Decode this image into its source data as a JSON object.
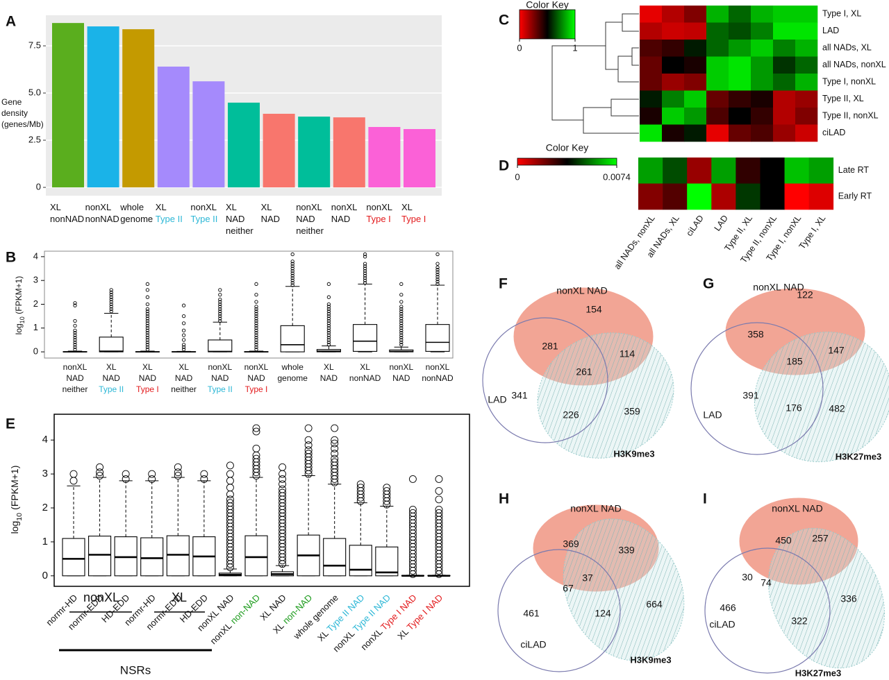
{
  "chart_data": [
    {
      "type": "bar",
      "label": "A",
      "ylabel": [
        "Gene",
        "density",
        "(genes/Mb)"
      ],
      "categories": [
        [
          "XL",
          "nonNAD"
        ],
        [
          "nonXL",
          "nonNAD"
        ],
        [
          "whole",
          "genome"
        ],
        [
          "XL",
          {
            "text": "Type II",
            "color": "#2cb7d6"
          }
        ],
        [
          "nonXL",
          {
            "text": "Type II",
            "color": "#2cb7d6"
          }
        ],
        [
          "XL",
          "NAD",
          "neither"
        ],
        [
          "XL",
          "NAD"
        ],
        [
          "nonXL",
          "NAD",
          "neither"
        ],
        [
          "nonXL",
          "NAD"
        ],
        [
          "nonXL",
          {
            "text": "Type I",
            "color": "#e31a1c"
          }
        ],
        [
          "XL",
          {
            "text": "Type I",
            "color": "#e31a1c"
          }
        ]
      ],
      "values": [
        8.71,
        8.53,
        8.38,
        6.4,
        5.62,
        4.49,
        3.9,
        3.75,
        3.71,
        3.2,
        3.09
      ],
      "colors": [
        "#5aae1e",
        "#1ab3e8",
        "#c49a00",
        "#a58afc",
        "#a58afc",
        "#00be9a",
        "#f8766d",
        "#00be9a",
        "#f8766d",
        "#fb61d7",
        "#fb61d7"
      ],
      "ylim": [
        -0.44,
        9.12
      ],
      "yticks": [
        0,
        2.5,
        {
          "value": 5,
          "label": "5.0"
        },
        7.5
      ],
      "grid": true
    },
    {
      "type": "box",
      "label": "B",
      "ylabel": [
        "log",
        "10",
        "(FPKM+1)"
      ],
      "categories": [
        [
          "nonXL",
          "NAD",
          "neither"
        ],
        [
          "XL",
          "NAD",
          {
            "text": "Type II",
            "color": "#2cb7d6"
          }
        ],
        [
          "XL",
          "NAD",
          {
            "text": "Type I",
            "color": "#e31a1c"
          }
        ],
        [
          "XL",
          "NAD",
          "neither"
        ],
        [
          "nonXL",
          "NAD",
          {
            "text": "Type II",
            "color": "#2cb7d6"
          }
        ],
        [
          "nonXL",
          "NAD",
          {
            "text": "Type I",
            "color": "#e31a1c"
          }
        ],
        [
          "whole",
          "genome"
        ],
        [
          "XL",
          "NAD"
        ],
        [
          "XL",
          "nonNAD"
        ],
        [
          "nonXL",
          "NAD"
        ],
        [
          "nonXL",
          "nonNAD"
        ]
      ],
      "stats": [
        {
          "whisker_low": 0,
          "q1": 0,
          "median": 0,
          "q3": 0.01,
          "whisker_high": 0.03,
          "outliers": [
            0.1,
            0.2,
            0.3,
            0.4,
            0.5,
            0.6,
            0.7,
            0.8,
            0.9,
            1.1,
            1.3,
            1.95,
            2.05
          ]
        },
        {
          "whisker_low": 0,
          "q1": 0,
          "median": 0.03,
          "q3": 0.62,
          "whisker_high": 1.62,
          "outliers": [
            1.7,
            1.8,
            1.9,
            2.0,
            2.1,
            2.2,
            2.3,
            2.4,
            2.5,
            2.6
          ]
        },
        {
          "whisker_low": 0,
          "q1": 0,
          "median": 0,
          "q3": 0.01,
          "whisker_high": 0.03,
          "outliers": [
            0.1,
            0.2,
            0.3,
            0.4,
            0.5,
            0.6,
            0.7,
            0.8,
            0.9,
            1.0,
            1.1,
            1.2,
            1.3,
            1.4,
            1.5,
            1.6,
            1.7,
            1.8,
            2.0,
            2.3,
            2.6,
            2.85
          ]
        },
        {
          "whisker_low": 0,
          "q1": 0,
          "median": 0,
          "q3": 0.01,
          "whisker_high": 0.02,
          "outliers": [
            0.1,
            0.2,
            0.3,
            0.5,
            0.7,
            0.9,
            1.2,
            1.5,
            1.95
          ]
        },
        {
          "whisker_low": 0,
          "q1": 0,
          "median": 0.02,
          "q3": 0.5,
          "whisker_high": 1.25,
          "outliers": [
            1.3,
            1.4,
            1.5,
            1.6,
            1.7,
            1.8,
            1.9,
            2.0,
            2.1,
            2.2,
            2.4,
            2.6
          ]
        },
        {
          "whisker_low": 0,
          "q1": 0,
          "median": 0,
          "q3": 0.01,
          "whisker_high": 0.03,
          "outliers": [
            0.1,
            0.2,
            0.3,
            0.4,
            0.5,
            0.6,
            0.7,
            0.8,
            0.9,
            1.0,
            1.1,
            1.2,
            1.3,
            1.4,
            1.5,
            1.6,
            1.7,
            1.8,
            1.9,
            2.1,
            2.4,
            2.85
          ]
        },
        {
          "whisker_low": 0,
          "q1": 0,
          "median": 0.3,
          "q3": 1.1,
          "whisker_high": 2.75,
          "outliers": [
            2.8,
            2.9,
            3.0,
            3.1,
            3.2,
            3.3,
            3.4,
            3.5,
            3.6,
            3.7,
            3.8,
            4.1
          ]
        },
        {
          "whisker_low": 0,
          "q1": 0,
          "median": 0.03,
          "q3": 0.1,
          "whisker_high": 0.25,
          "outliers": [
            0.3,
            0.4,
            0.5,
            0.6,
            0.7,
            0.8,
            0.9,
            1.0,
            1.1,
            1.2,
            1.3,
            1.4,
            1.5,
            1.6,
            1.7,
            1.8,
            1.9,
            2.0,
            2.3,
            2.85
          ]
        },
        {
          "whisker_low": 0,
          "q1": 0.02,
          "median": 0.45,
          "q3": 1.15,
          "whisker_high": 2.85,
          "outliers": [
            2.9,
            3.0,
            3.1,
            3.2,
            3.3,
            3.4,
            3.5,
            3.6,
            3.7,
            4.0,
            4.1
          ]
        },
        {
          "whisker_low": 0,
          "q1": 0,
          "median": 0.02,
          "q3": 0.08,
          "whisker_high": 0.2,
          "outliers": [
            0.3,
            0.4,
            0.5,
            0.6,
            0.7,
            0.8,
            0.9,
            1.0,
            1.1,
            1.2,
            1.3,
            1.4,
            1.5,
            1.6,
            1.7,
            1.8,
            1.9,
            2.1,
            2.4,
            2.85
          ]
        },
        {
          "whisker_low": 0,
          "q1": 0.02,
          "median": 0.4,
          "q3": 1.15,
          "whisker_high": 2.8,
          "outliers": [
            2.85,
            2.95,
            3.05,
            3.15,
            3.25,
            3.35,
            3.45,
            3.55,
            3.7,
            4.1
          ]
        }
      ],
      "ylim": [
        -0.26,
        4.23
      ],
      "yticks": [
        0,
        1,
        2,
        3,
        4
      ]
    },
    {
      "type": "box",
      "label": "E",
      "ylabel": [
        "log",
        "10",
        "(FPKM+1)"
      ],
      "categories": [
        [
          "normr-HD"
        ],
        [
          "normr-EDD"
        ],
        [
          "HD-EDD"
        ],
        [
          "normr-HD"
        ],
        [
          "normr-EDD"
        ],
        [
          "HD-EDD"
        ],
        [
          "nonXL NAD"
        ],
        [
          [
            "nonXL",
            {
              "text": "non-NAD",
              "color": "#1a9a1a"
            }
          ]
        ],
        [
          "XL NAD"
        ],
        [
          [
            "XL",
            {
              "text": "non-NAD",
              "color": "#1a9a1a"
            }
          ]
        ],
        [
          "whole genome"
        ],
        [
          [
            "XL",
            {
              "text": "Type II NAD",
              "color": "#2cb7d6"
            }
          ]
        ],
        [
          [
            "nonXL",
            {
              "text": "Type II NAD",
              "color": "#2cb7d6"
            }
          ]
        ],
        [
          [
            "nonXL",
            {
              "text": "Type I NAD",
              "color": "#e31a1c"
            }
          ]
        ],
        [
          [
            "XL",
            {
              "text": "Type I NAD",
              "color": "#e31a1c"
            }
          ]
        ]
      ],
      "stats": [
        {
          "whisker_low": 0,
          "q1": 0,
          "median": 0.5,
          "q3": 1.1,
          "whisker_high": 2.65,
          "outliers": [
            2.8,
            3.0
          ]
        },
        {
          "whisker_low": 0,
          "q1": 0,
          "median": 0.62,
          "q3": 1.17,
          "whisker_high": 2.9,
          "outliers": [
            2.95,
            3.05,
            3.2
          ]
        },
        {
          "whisker_low": 0,
          "q1": 0,
          "median": 0.55,
          "q3": 1.15,
          "whisker_high": 2.8,
          "outliers": [
            2.85,
            3.0
          ]
        },
        {
          "whisker_low": 0,
          "q1": 0,
          "median": 0.52,
          "q3": 1.12,
          "whisker_high": 2.8,
          "outliers": [
            2.85,
            3.0
          ]
        },
        {
          "whisker_low": 0,
          "q1": 0,
          "median": 0.62,
          "q3": 1.18,
          "whisker_high": 2.9,
          "outliers": [
            2.95,
            3.05,
            3.2
          ]
        },
        {
          "whisker_low": 0,
          "q1": 0,
          "median": 0.57,
          "q3": 1.15,
          "whisker_high": 2.8,
          "outliers": [
            2.85,
            3.0
          ]
        },
        {
          "whisker_low": 0,
          "q1": 0,
          "median": 0.03,
          "q3": 0.08,
          "whisker_high": 0.2,
          "outliers": [
            0.25,
            0.35,
            0.45,
            0.55,
            0.65,
            0.75,
            0.85,
            0.95,
            1.05,
            1.15,
            1.25,
            1.35,
            1.45,
            1.55,
            1.65,
            1.75,
            1.85,
            1.95,
            2.05,
            2.15,
            2.25,
            2.4,
            2.6,
            2.8,
            3.0,
            3.25
          ]
        },
        {
          "whisker_low": 0,
          "q1": 0,
          "median": 0.55,
          "q3": 1.18,
          "whisker_high": 2.9,
          "outliers": [
            2.95,
            3.05,
            3.15,
            3.25,
            3.35,
            3.45,
            3.55,
            3.75,
            4.25,
            4.35
          ]
        },
        {
          "whisker_low": 0,
          "q1": 0,
          "median": 0.05,
          "q3": 0.12,
          "whisker_high": 0.3,
          "outliers": [
            0.35,
            0.45,
            0.55,
            0.65,
            0.75,
            0.85,
            0.95,
            1.05,
            1.15,
            1.25,
            1.35,
            1.45,
            1.55,
            1.65,
            1.75,
            1.85,
            1.95,
            2.05,
            2.15,
            2.25,
            2.35,
            2.45,
            2.55,
            2.7,
            2.85,
            3.0,
            3.2
          ]
        },
        {
          "whisker_low": 0,
          "q1": 0,
          "median": 0.6,
          "q3": 1.2,
          "whisker_high": 2.95,
          "outliers": [
            3.0,
            3.1,
            3.2,
            3.3,
            3.4,
            3.5,
            3.6,
            3.7,
            3.85,
            4.0,
            4.35
          ]
        },
        {
          "whisker_low": 0,
          "q1": 0,
          "median": 0.3,
          "q3": 1.1,
          "whisker_high": 2.7,
          "outliers": [
            2.75,
            2.85,
            2.95,
            3.05,
            3.15,
            3.25,
            3.35,
            3.45,
            3.6,
            3.75,
            3.9,
            4.0,
            4.35
          ]
        },
        {
          "whisker_low": 0,
          "q1": 0,
          "median": 0.18,
          "q3": 0.9,
          "whisker_high": 2.15,
          "outliers": [
            2.2,
            2.3,
            2.4,
            2.5,
            2.6,
            2.7
          ]
        },
        {
          "whisker_low": 0,
          "q1": 0,
          "median": 0.1,
          "q3": 0.85,
          "whisker_high": 2.05,
          "outliers": [
            2.1,
            2.2,
            2.3,
            2.4,
            2.5,
            2.6
          ]
        },
        {
          "whisker_low": 0,
          "q1": 0,
          "median": 0,
          "q3": 0.01,
          "whisker_high": 0.02,
          "outliers": [
            0.05,
            0.15,
            0.25,
            0.35,
            0.45,
            0.55,
            0.65,
            0.75,
            0.85,
            0.95,
            1.05,
            1.15,
            1.25,
            1.35,
            1.45,
            1.55,
            1.65,
            1.75,
            1.85,
            1.95,
            2.85
          ]
        },
        {
          "whisker_low": 0,
          "q1": 0,
          "median": 0,
          "q3": 0.01,
          "whisker_high": 0.02,
          "outliers": [
            0.05,
            0.15,
            0.25,
            0.35,
            0.45,
            0.55,
            0.65,
            0.75,
            0.85,
            0.95,
            1.05,
            1.15,
            1.25,
            1.35,
            1.45,
            1.55,
            1.65,
            1.75,
            1.85,
            1.95,
            2.25,
            2.5,
            2.85
          ]
        }
      ],
      "groups": [
        "nonXL",
        "XL"
      ],
      "group_label": {
        "text": "NSRs",
        "color": "#1a9a1a"
      },
      "ylim": [
        -0.31,
        4.76
      ],
      "yticks": [
        0,
        1,
        2,
        3,
        4
      ]
    },
    {
      "type": "heatmap",
      "label": "C",
      "key_title": "Color Key",
      "key_lim": [
        0,
        1
      ],
      "key_ticks": [
        0,
        1
      ],
      "rows": [
        "Type I, XL",
        "LAD",
        "all NADs, XL",
        "all NADs, nonXL",
        "Type I, nonXL",
        "Type II, XL",
        "Type II, nonXL",
        "ciLAD"
      ],
      "values": [
        [
          0.05,
          0.15,
          0.25,
          0.85,
          0.7,
          0.85,
          0.9,
          0.9
        ],
        [
          0.15,
          0.1,
          0.12,
          0.7,
          0.65,
          0.75,
          0.95,
          0.95
        ],
        [
          0.35,
          0.4,
          0.55,
          0.7,
          0.8,
          0.9,
          0.75,
          0.85
        ],
        [
          0.3,
          0.5,
          0.45,
          0.9,
          0.95,
          0.8,
          0.6,
          0.7
        ],
        [
          0.3,
          0.2,
          0.25,
          0.9,
          0.95,
          0.8,
          0.7,
          0.85
        ],
        [
          0.55,
          0.75,
          0.9,
          0.3,
          0.4,
          0.45,
          0.15,
          0.2
        ],
        [
          0.45,
          0.9,
          0.8,
          0.35,
          0.5,
          0.4,
          0.15,
          0.25
        ],
        [
          0.95,
          0.45,
          0.55,
          0.05,
          0.3,
          0.35,
          0.2,
          0.1
        ]
      ]
    },
    {
      "type": "heatmap",
      "label": "D",
      "key_title": "Color Key",
      "key_lim": [
        0,
        0.0074
      ],
      "key_ticks": [
        0,
        0.0074
      ],
      "rows": [
        "Late RT",
        "Early RT"
      ],
      "columns": [
        "all NADs, nonXL",
        "all NADs, XL",
        "ciLAD",
        "LAD",
        "Type II, XL",
        "Type II, nonXL",
        "Type I, nonXL",
        "Type I, XL"
      ],
      "values": [
        [
          0.006,
          0.0048,
          0.0015,
          0.006,
          0.003,
          0.0037,
          0.0065,
          0.006
        ],
        [
          0.0018,
          0.0025,
          0.0074,
          0.0012,
          0.0045,
          0.0037,
          0,
          0.0005
        ]
      ]
    }
  ],
  "venn_diagrams": [
    {
      "letter": "F",
      "title": "nonXL NAD",
      "set_a": {
        "text": "LAD",
        "color": "#e31a1c"
      },
      "set_b": {
        "text": "H3K9me3",
        "color": "#1a3fc4"
      },
      "regions": [
        154,
        281,
        261,
        114,
        341,
        226,
        359
      ]
    },
    {
      "letter": "G",
      "title": "nonXL NAD",
      "set_a": {
        "text": "LAD",
        "color": "#e31a1c"
      },
      "set_b": {
        "text": "H3K27me3",
        "color": "#d020c0"
      },
      "regions": [
        122,
        358,
        185,
        147,
        391,
        176,
        482
      ]
    },
    {
      "letter": "H",
      "title": "nonXL NAD",
      "set_a": {
        "text": "ciLAD",
        "color": "#4fc0e0"
      },
      "set_b": {
        "text": "H3K9me3",
        "color": "#1a3fc4"
      },
      "regions": [
        369,
        339,
        67,
        37,
        461,
        124,
        664
      ]
    },
    {
      "letter": "I",
      "title": "nonXL NAD",
      "set_a": {
        "text": "ciLAD",
        "color": "#4fc0e0"
      },
      "set_b": {
        "text": "H3K27me3",
        "color": "#d020c0"
      },
      "regions": [
        450,
        257,
        30,
        74,
        466,
        322,
        336
      ]
    }
  ]
}
